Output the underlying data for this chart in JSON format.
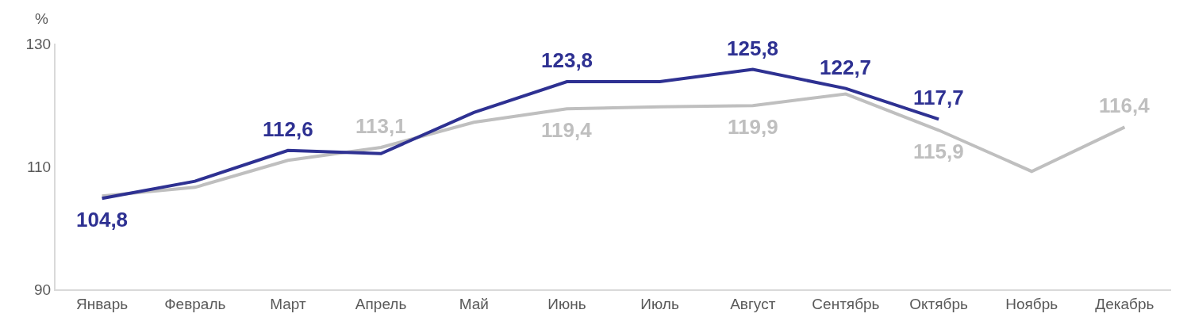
{
  "chart_data": {
    "type": "line",
    "ylabel": "%",
    "categories": [
      "Январь",
      "Февраль",
      "Март",
      "Апрель",
      "Май",
      "Июнь",
      "Июль",
      "Август",
      "Сентябрь",
      "Октябрь",
      "Ноябрь",
      "Декабрь"
    ],
    "series": [
      {
        "color": "#bfbfbf",
        "values": [
          105.2,
          106.6,
          111.0,
          113.1,
          117.2,
          119.4,
          119.7,
          119.9,
          121.8,
          115.9,
          109.2,
          116.4
        ],
        "value_labels": [
          null,
          null,
          null,
          "113,1",
          null,
          "119,4",
          null,
          "119,9",
          null,
          "115,9",
          null,
          "116,4"
        ]
      },
      {
        "color": "#2e3192",
        "values": [
          104.8,
          107.6,
          112.6,
          112.1,
          118.8,
          123.8,
          123.8,
          125.8,
          122.7,
          117.7,
          null,
          null
        ],
        "value_labels": [
          "104,8",
          null,
          "112,6",
          null,
          null,
          "123,8",
          null,
          "125,8",
          "122,7",
          "117,7",
          null,
          null
        ]
      }
    ],
    "ylim": [
      90,
      130
    ],
    "yticks": [
      90,
      110,
      130
    ],
    "marker": "none",
    "line_style": "solid"
  }
}
